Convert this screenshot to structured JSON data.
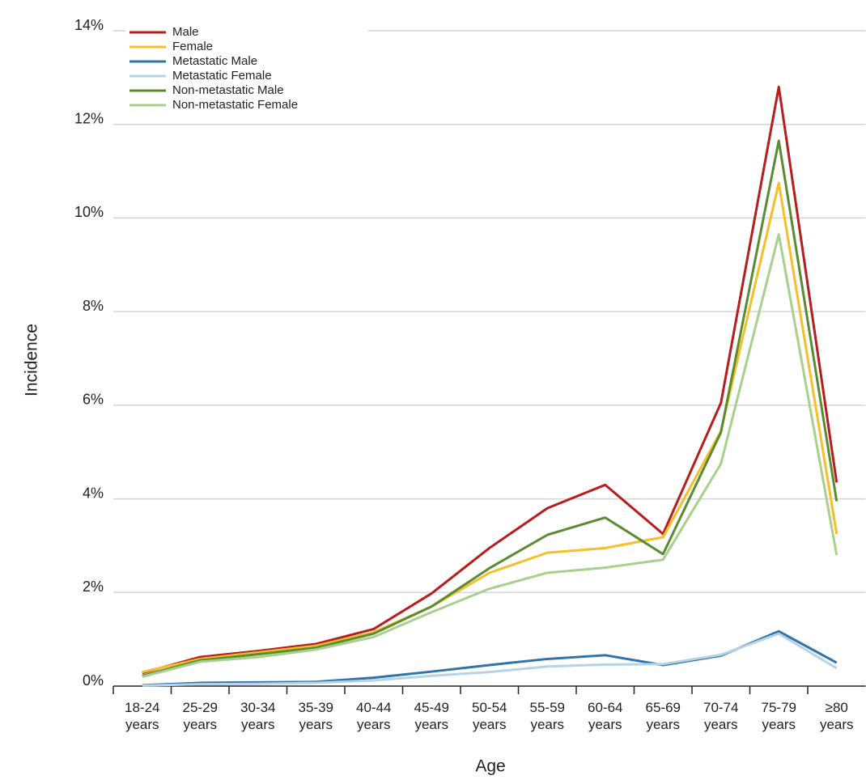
{
  "chart_data": {
    "type": "line",
    "x_label": "Age",
    "y_label": "Incidence",
    "categories": [
      "18-24 years",
      "25-29 years",
      "30-34 years",
      "35-39 years",
      "40-44 years",
      "45-49 years",
      "50-54 years",
      "55-59 years",
      "60-64 years",
      "65-69 years",
      "70-74 years",
      "75-79 years",
      "≥80 years"
    ],
    "series": [
      {
        "name": "Male",
        "color": "#b81c1c",
        "values": [
          0.28,
          0.62,
          0.75,
          0.9,
          1.22,
          1.98,
          2.95,
          3.8,
          4.3,
          3.25,
          6.05,
          12.8,
          4.35
        ]
      },
      {
        "name": "Female",
        "color": "#f4bf2a",
        "values": [
          0.3,
          0.58,
          0.72,
          0.86,
          1.15,
          1.7,
          2.42,
          2.85,
          2.95,
          3.18,
          5.45,
          10.75,
          3.25
        ]
      },
      {
        "name": "Metastatic Male",
        "color": "#2f73ad",
        "values": [
          0.02,
          0.07,
          0.08,
          0.09,
          0.18,
          0.31,
          0.45,
          0.58,
          0.66,
          0.45,
          0.65,
          1.17,
          0.5
        ]
      },
      {
        "name": "Metastatic Female",
        "color": "#b6d3e4",
        "values": [
          0.01,
          0.04,
          0.05,
          0.07,
          0.12,
          0.22,
          0.3,
          0.42,
          0.46,
          0.47,
          0.67,
          1.12,
          0.38
        ]
      },
      {
        "name": "Non-metastatic Male",
        "color": "#5a8a32",
        "values": [
          0.22,
          0.55,
          0.68,
          0.82,
          1.12,
          1.7,
          2.52,
          3.23,
          3.6,
          2.82,
          5.42,
          11.65,
          3.95
        ]
      },
      {
        "name": "Non-metastatic Female",
        "color": "#a8d08d",
        "values": [
          0.2,
          0.52,
          0.62,
          0.78,
          1.05,
          1.58,
          2.08,
          2.42,
          2.53,
          2.7,
          4.75,
          9.65,
          2.8
        ]
      }
    ],
    "ylim": [
      0,
      14
    ],
    "yticks": [
      {
        "value": 0,
        "label": "0%"
      },
      {
        "value": 2,
        "label": "2%"
      },
      {
        "value": 4,
        "label": "4%"
      },
      {
        "value": 6,
        "label": "6%"
      },
      {
        "value": 8,
        "label": "8%"
      },
      {
        "value": 10,
        "label": "10%"
      },
      {
        "value": 12,
        "label": "12%"
      },
      {
        "value": 14,
        "label": "14%"
      }
    ],
    "grid": true,
    "legend": "upper-left"
  }
}
